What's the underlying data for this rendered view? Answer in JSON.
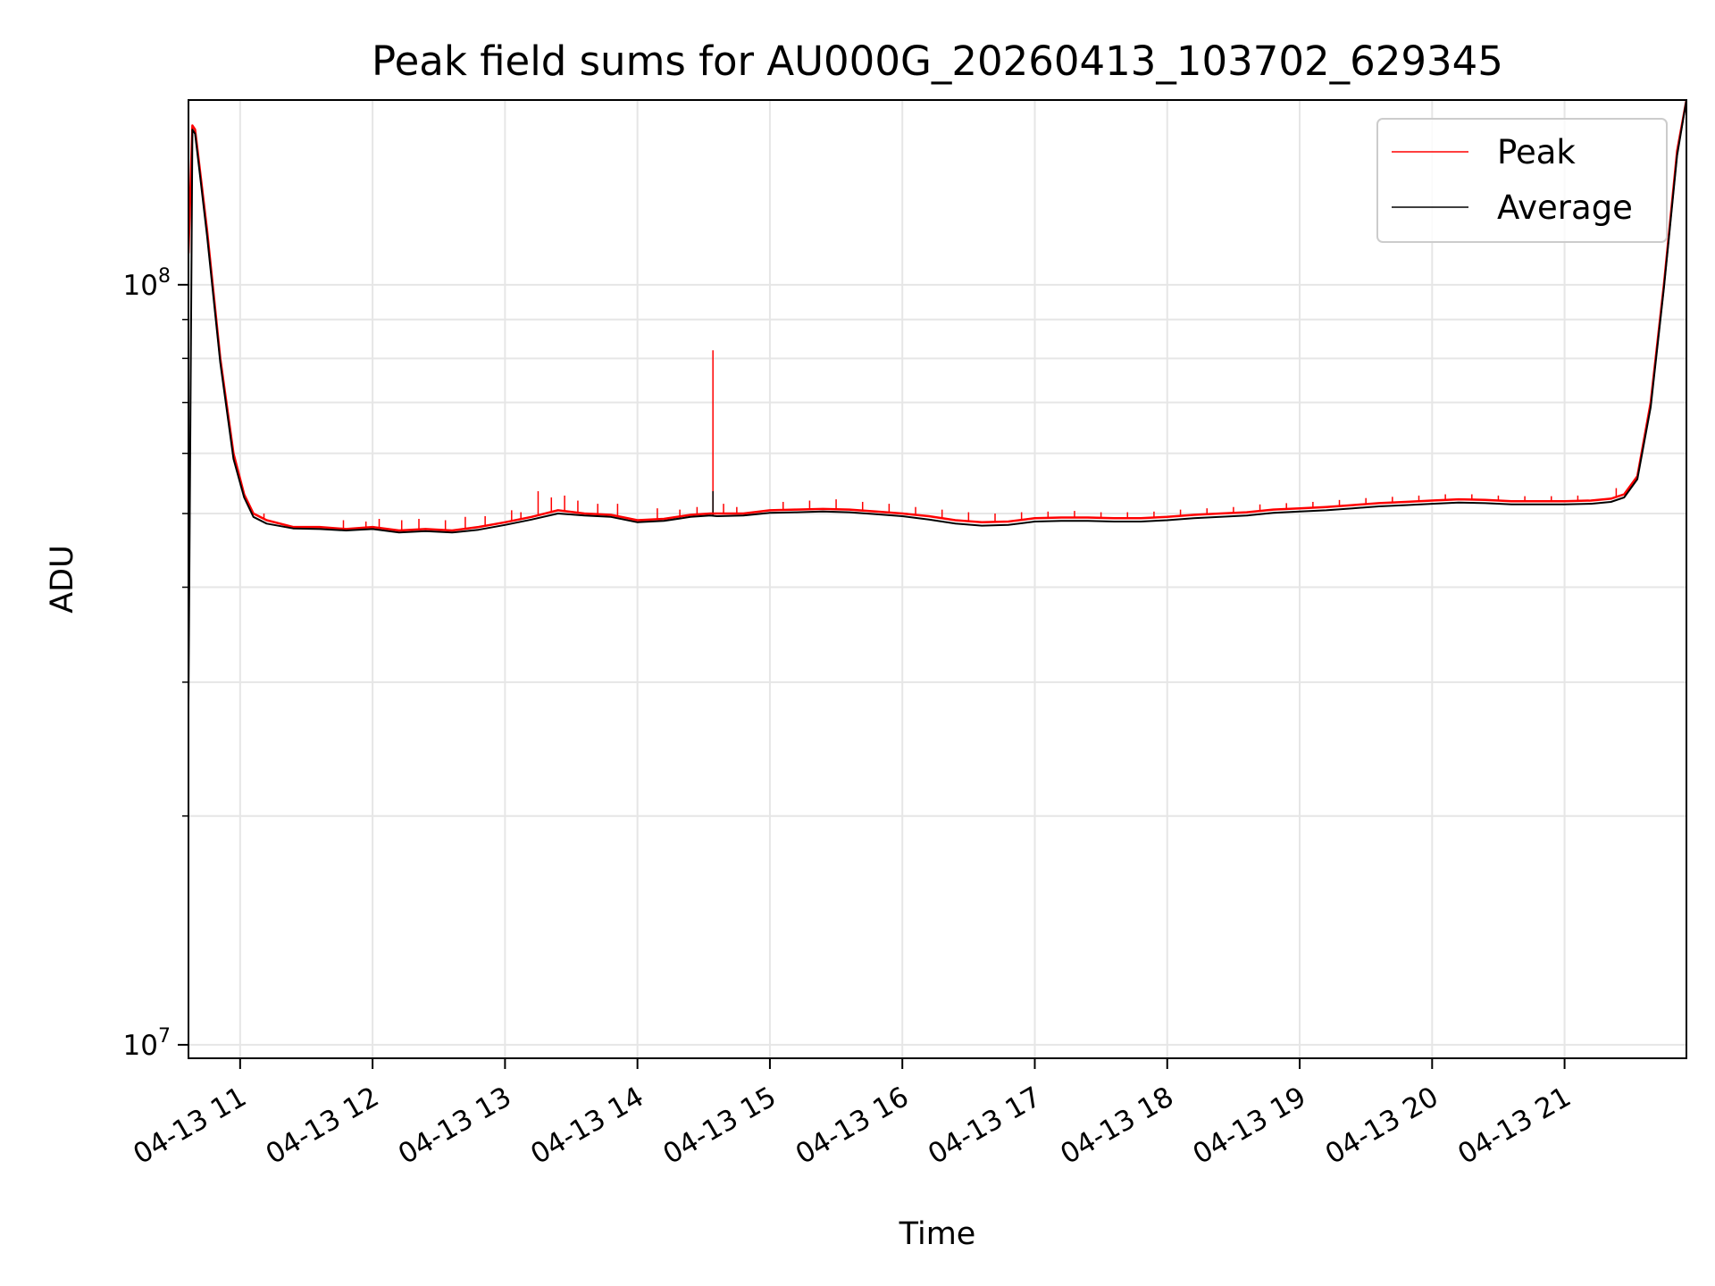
{
  "chart_data": {
    "type": "line",
    "title": "Peak field sums for AU000G_20260413_103702_629345",
    "xlabel": "Time",
    "ylabel": "ADU",
    "yscale": "log",
    "ylim": [
      9600000,
      175000000
    ],
    "xlim": [
      10.61,
      21.92
    ],
    "grid": true,
    "legend_position": "top-right",
    "x_ticks": [
      {
        "value": 11,
        "label": "04-13 11"
      },
      {
        "value": 12,
        "label": "04-13 12"
      },
      {
        "value": 13,
        "label": "04-13 13"
      },
      {
        "value": 14,
        "label": "04-13 14"
      },
      {
        "value": 15,
        "label": "04-13 15"
      },
      {
        "value": 16,
        "label": "04-13 16"
      },
      {
        "value": 17,
        "label": "04-13 17"
      },
      {
        "value": 18,
        "label": "04-13 18"
      },
      {
        "value": 19,
        "label": "04-13 19"
      },
      {
        "value": 20,
        "label": "04-13 20"
      },
      {
        "value": 21,
        "label": "04-13 21"
      }
    ],
    "y_major_ticks": [
      {
        "value": 10000000,
        "base": "10",
        "exp": "7"
      },
      {
        "value": 100000000,
        "base": "10",
        "exp": "8"
      }
    ],
    "y_minor_ticks": [
      20000000,
      30000000,
      40000000,
      50000000,
      60000000,
      70000000,
      80000000,
      90000000
    ],
    "series": [
      {
        "name": "Peak",
        "color": "#ff0000",
        "x": [
          10.61,
          10.64,
          10.66,
          10.7,
          10.75,
          10.85,
          10.95,
          11.03,
          11.1,
          11.2,
          11.4,
          11.6,
          11.8,
          12.0,
          12.2,
          12.4,
          12.6,
          12.8,
          13.0,
          13.2,
          13.4,
          13.6,
          13.8,
          14.0,
          14.2,
          14.4,
          14.55,
          14.6,
          14.8,
          15.0,
          15.2,
          15.4,
          15.6,
          15.8,
          16.0,
          16.2,
          16.4,
          16.6,
          16.8,
          17.0,
          17.2,
          17.4,
          17.6,
          17.8,
          18.0,
          18.2,
          18.4,
          18.6,
          18.8,
          19.0,
          19.2,
          19.4,
          19.6,
          19.8,
          20.0,
          20.2,
          20.4,
          20.6,
          20.8,
          21.0,
          21.2,
          21.35,
          21.45,
          21.55,
          21.65,
          21.75,
          21.85,
          21.92
        ],
        "y": [
          110000000,
          162000000,
          160000000,
          140000000,
          118000000,
          80000000,
          60000000,
          53000000,
          50000000,
          49000000,
          48000000,
          48000000,
          47700000,
          48000000,
          47500000,
          47700000,
          47500000,
          48000000,
          48700000,
          49500000,
          50500000,
          50000000,
          49800000,
          49000000,
          49200000,
          49800000,
          50000000,
          50000000,
          50000000,
          50500000,
          50600000,
          50700000,
          50600000,
          50300000,
          50000000,
          49600000,
          49000000,
          48700000,
          48800000,
          49300000,
          49400000,
          49400000,
          49300000,
          49300000,
          49500000,
          49800000,
          50000000,
          50200000,
          50600000,
          50800000,
          51000000,
          51300000,
          51600000,
          51800000,
          52000000,
          52200000,
          52100000,
          51900000,
          51900000,
          51900000,
          52000000,
          52300000,
          53000000,
          56000000,
          70000000,
          100000000,
          150000000,
          175000000
        ],
        "spikes": [
          {
            "x": 11.18,
            "y": 50000000
          },
          {
            "x": 11.78,
            "y": 49000000
          },
          {
            "x": 11.95,
            "y": 48800000
          },
          {
            "x": 12.05,
            "y": 49200000
          },
          {
            "x": 12.22,
            "y": 49000000
          },
          {
            "x": 12.35,
            "y": 49200000
          },
          {
            "x": 12.55,
            "y": 49000000
          },
          {
            "x": 12.7,
            "y": 49500000
          },
          {
            "x": 12.85,
            "y": 49600000
          },
          {
            "x": 13.05,
            "y": 50500000
          },
          {
            "x": 13.12,
            "y": 50200000
          },
          {
            "x": 13.25,
            "y": 53500000
          },
          {
            "x": 13.35,
            "y": 52500000
          },
          {
            "x": 13.45,
            "y": 52800000
          },
          {
            "x": 13.55,
            "y": 52000000
          },
          {
            "x": 13.7,
            "y": 51500000
          },
          {
            "x": 13.85,
            "y": 51500000
          },
          {
            "x": 14.15,
            "y": 50800000
          },
          {
            "x": 14.32,
            "y": 50600000
          },
          {
            "x": 14.45,
            "y": 51000000
          },
          {
            "x": 14.57,
            "y": 82000000
          },
          {
            "x": 14.65,
            "y": 51500000
          },
          {
            "x": 14.75,
            "y": 51000000
          },
          {
            "x": 15.1,
            "y": 51800000
          },
          {
            "x": 15.3,
            "y": 52000000
          },
          {
            "x": 15.5,
            "y": 52200000
          },
          {
            "x": 15.7,
            "y": 51800000
          },
          {
            "x": 15.9,
            "y": 51500000
          },
          {
            "x": 16.1,
            "y": 51000000
          },
          {
            "x": 16.3,
            "y": 50600000
          },
          {
            "x": 16.5,
            "y": 50200000
          },
          {
            "x": 16.7,
            "y": 50000000
          },
          {
            "x": 16.9,
            "y": 50200000
          },
          {
            "x": 17.1,
            "y": 50300000
          },
          {
            "x": 17.3,
            "y": 50400000
          },
          {
            "x": 17.5,
            "y": 50200000
          },
          {
            "x": 17.7,
            "y": 50200000
          },
          {
            "x": 17.9,
            "y": 50300000
          },
          {
            "x": 18.1,
            "y": 50600000
          },
          {
            "x": 18.3,
            "y": 50800000
          },
          {
            "x": 18.5,
            "y": 51000000
          },
          {
            "x": 18.7,
            "y": 51400000
          },
          {
            "x": 18.9,
            "y": 51600000
          },
          {
            "x": 19.1,
            "y": 51800000
          },
          {
            "x": 19.3,
            "y": 52100000
          },
          {
            "x": 19.5,
            "y": 52400000
          },
          {
            "x": 19.7,
            "y": 52600000
          },
          {
            "x": 19.9,
            "y": 52800000
          },
          {
            "x": 20.1,
            "y": 53000000
          },
          {
            "x": 20.3,
            "y": 53000000
          },
          {
            "x": 20.5,
            "y": 52800000
          },
          {
            "x": 20.7,
            "y": 52700000
          },
          {
            "x": 20.9,
            "y": 52700000
          },
          {
            "x": 21.1,
            "y": 52800000
          },
          {
            "x": 21.39,
            "y": 54000000
          }
        ]
      },
      {
        "name": "Average",
        "color": "#000000",
        "x": [
          10.61,
          10.64,
          10.66,
          10.7,
          10.75,
          10.85,
          10.95,
          11.03,
          11.1,
          11.2,
          11.4,
          11.6,
          11.8,
          12.0,
          12.2,
          12.4,
          12.6,
          12.8,
          13.0,
          13.2,
          13.4,
          13.6,
          13.8,
          14.0,
          14.2,
          14.4,
          14.55,
          14.6,
          14.8,
          15.0,
          15.2,
          15.4,
          15.6,
          15.8,
          16.0,
          16.2,
          16.4,
          16.6,
          16.8,
          17.0,
          17.2,
          17.4,
          17.6,
          17.8,
          18.0,
          18.2,
          18.4,
          18.6,
          18.8,
          19.0,
          19.2,
          19.4,
          19.6,
          19.8,
          20.0,
          20.2,
          20.4,
          20.6,
          20.8,
          21.0,
          21.2,
          21.35,
          21.45,
          21.55,
          21.65,
          21.75,
          21.85,
          21.92
        ],
        "y": [
          28000000,
          160000000,
          158000000,
          138000000,
          116000000,
          79000000,
          59000000,
          52500000,
          49500000,
          48500000,
          47800000,
          47700000,
          47500000,
          47700000,
          47200000,
          47400000,
          47200000,
          47600000,
          48300000,
          49100000,
          50000000,
          49700000,
          49500000,
          48700000,
          48900000,
          49500000,
          49700000,
          49600000,
          49700000,
          50100000,
          50200000,
          50300000,
          50200000,
          49900000,
          49600000,
          49100000,
          48500000,
          48200000,
          48300000,
          48800000,
          48900000,
          48900000,
          48800000,
          48800000,
          49000000,
          49300000,
          49500000,
          49700000,
          50100000,
          50300000,
          50500000,
          50800000,
          51100000,
          51300000,
          51500000,
          51700000,
          51600000,
          51400000,
          51400000,
          51400000,
          51500000,
          51800000,
          52500000,
          55500000,
          69000000,
          99000000,
          148000000,
          175000000
        ],
        "spikes": [
          {
            "x": 14.57,
            "y": 53500000
          }
        ]
      }
    ]
  }
}
